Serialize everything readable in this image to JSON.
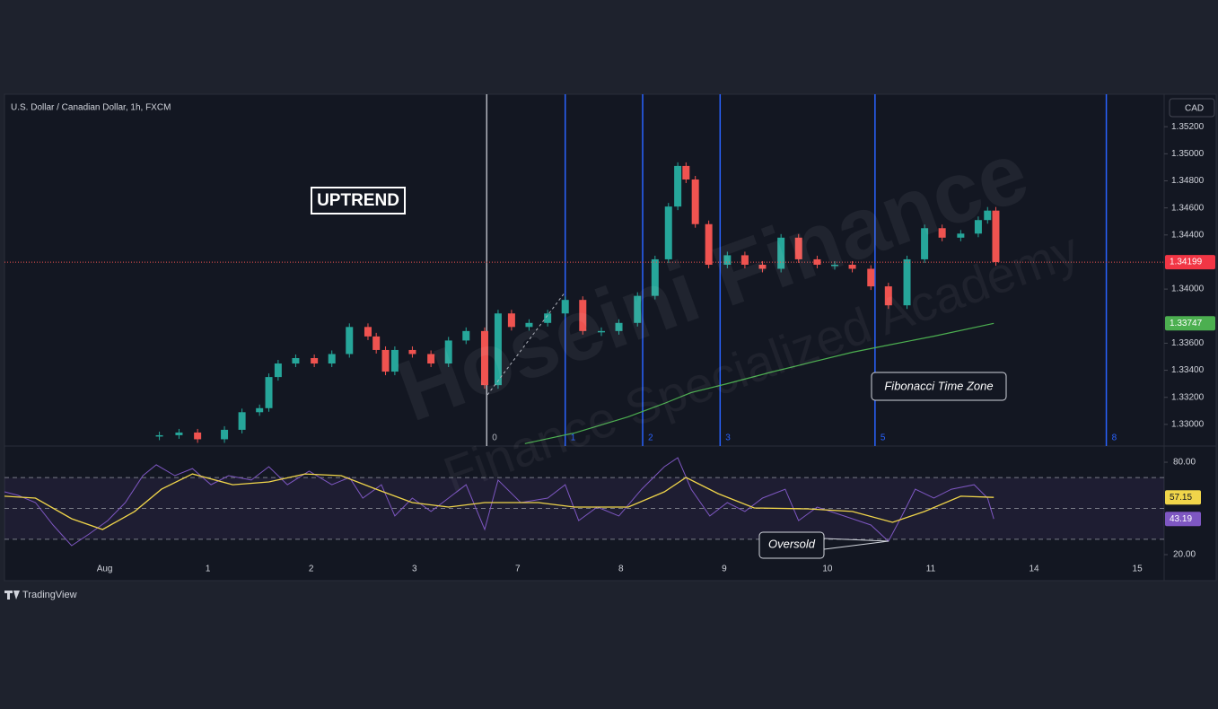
{
  "chart_data": [
    {
      "type": "candlestick",
      "title": "U.S. Dollar / Canadian Dollar, 1h, FXCM",
      "currency": "CAD",
      "watermark": "Hoseini Finance",
      "watermark_subtitle": "Finance Specialized Academy",
      "annotations": [
        "UPTREND",
        "Fibonacci Time Zone",
        "Oversold"
      ],
      "xlim": [
        -0.97,
        10.26
      ],
      "xticks": [
        {
          "value": 0,
          "label": "Aug"
        },
        1,
        2,
        3,
        {
          "value": 4,
          "label": "7"
        },
        {
          "value": 5,
          "label": "8"
        },
        {
          "value": 6,
          "label": "9"
        },
        {
          "value": 7,
          "label": "10"
        },
        {
          "value": 8,
          "label": "11"
        },
        {
          "value": 9,
          "label": "14"
        },
        {
          "value": 10,
          "label": "15"
        }
      ],
      "ylim": [
        1.3284,
        1.3544
      ],
      "yticks": [
        {
          "value": 1.352,
          "label": "1.35200"
        },
        {
          "value": 1.35,
          "label": "1.35000"
        },
        {
          "value": 1.348,
          "label": "1.34800"
        },
        {
          "value": 1.346,
          "label": "1.34600"
        },
        {
          "value": 1.344,
          "label": "1.34400"
        },
        {
          "value": 1.34,
          "label": "1.34000"
        },
        {
          "value": 1.336,
          "label": "1.33600"
        },
        {
          "value": 1.334,
          "label": "1.33400"
        },
        {
          "value": 1.332,
          "label": "1.33200"
        },
        {
          "value": 1.33,
          "label": "1.33000"
        }
      ],
      "up_color": "#26a69a",
      "down_color": "#ef5350",
      "x": [
        0.53,
        0.72,
        0.9,
        1.16,
        1.33,
        1.5,
        1.59,
        1.68,
        1.85,
        2.03,
        2.2,
        2.37,
        2.55,
        2.63,
        2.72,
        2.81,
        2.98,
        3.16,
        3.33,
        3.5,
        3.68,
        3.81,
        3.94,
        4.11,
        4.29,
        4.46,
        4.63,
        4.81,
        4.98,
        5.16,
        5.33,
        5.46,
        5.55,
        5.63,
        5.72,
        5.85,
        6.03,
        6.2,
        6.37,
        6.55,
        6.72,
        6.9,
        7.07,
        7.24,
        7.42,
        7.59,
        7.77,
        7.94,
        8.11,
        8.29,
        8.46,
        8.55,
        8.63
      ],
      "values": [
        1.3292,
        1.3294,
        1.3289,
        1.3296,
        1.3309,
        1.3312,
        1.3335,
        1.3345,
        1.3349,
        1.3345,
        1.3352,
        1.3372,
        1.3365,
        1.3355,
        1.3339,
        1.3355,
        1.3352,
        1.3345,
        1.3362,
        1.3369,
        1.3329,
        1.3382,
        1.3372,
        1.3375,
        1.3382,
        1.3392,
        1.3369,
        1.3369,
        1.3375,
        1.3395,
        1.3422,
        1.3461,
        1.3491,
        1.3481,
        1.3448,
        1.3418,
        1.3425,
        1.3418,
        1.3415,
        1.3438,
        1.3422,
        1.3418,
        1.3418,
        1.3415,
        1.3402,
        1.3388,
        1.3422,
        1.3445,
        1.3438,
        1.3441,
        1.3451,
        1.3458,
        1.34199
      ],
      "ma": {
        "color": "#4caf50",
        "x": [
          4.07,
          4.55,
          5.07,
          5.42,
          5.68,
          6.03,
          6.46,
          6.81,
          7.24,
          7.59,
          8.03,
          8.61
        ],
        "values": [
          1.32858,
          1.32937,
          1.33056,
          1.33155,
          1.33235,
          1.33301,
          1.33387,
          1.33453,
          1.33533,
          1.33586,
          1.33652,
          1.33747
        ]
      },
      "fib_zones": {
        "color": "#2962ff",
        "x": [
          3.7,
          4.46,
          5.21,
          5.96,
          7.46,
          9.7
        ],
        "labels": [
          0,
          1,
          2,
          3,
          5,
          8
        ]
      }
    },
    {
      "type": "line",
      "xlim": [
        -0.97,
        10.26
      ],
      "ylim": [
        3.1,
        90.5
      ],
      "yticks": [
        {
          "value": 80,
          "label": "80.00"
        },
        {
          "value": 20,
          "label": "20.00"
        }
      ],
      "levels": [
        70,
        50,
        30
      ],
      "series": [
        {
          "color": "#7e57c2",
          "x": [
            -0.97,
            -0.84,
            -0.67,
            -0.5,
            -0.32,
            -0.15,
            0.03,
            0.2,
            0.37,
            0.5,
            0.68,
            0.85,
            1.03,
            1.2,
            1.42,
            1.59,
            1.77,
            1.98,
            2.2,
            2.37,
            2.5,
            2.68,
            2.81,
            2.98,
            3.16,
            3.33,
            3.5,
            3.68,
            3.81,
            4.03,
            4.29,
            4.46,
            4.59,
            4.77,
            4.98,
            5.2,
            5.42,
            5.55,
            5.68,
            5.86,
            6.03,
            6.2,
            6.37,
            6.59,
            6.72,
            6.9,
            7.16,
            7.42,
            7.59,
            7.72,
            7.85,
            8.03,
            8.2,
            8.42,
            8.55,
            8.61
          ],
          "values": [
            60.8,
            58.5,
            53.8,
            39.2,
            25.8,
            33.4,
            42.1,
            53.8,
            71.3,
            78.3,
            71.3,
            75.9,
            65.4,
            71.3,
            68.4,
            77.1,
            65.4,
            74.2,
            65.4,
            70.1,
            56.7,
            65.4,
            45.1,
            56.7,
            48.0,
            56.7,
            65.4,
            36.3,
            68.4,
            53.8,
            56.7,
            65.4,
            42.1,
            50.9,
            45.1,
            62.5,
            77.1,
            82.9,
            62.5,
            45.1,
            53.8,
            48.0,
            56.7,
            62.5,
            42.1,
            50.9,
            45.1,
            39.2,
            28.7,
            45.1,
            62.5,
            56.7,
            62.5,
            65.4,
            56.7,
            43.19
          ]
        },
        {
          "color": "#f0d54a",
          "x": [
            -0.97,
            -0.67,
            -0.32,
            -0.02,
            0.29,
            0.55,
            0.85,
            1.24,
            1.59,
            1.94,
            2.29,
            2.63,
            2.98,
            3.33,
            3.68,
            4.2,
            4.55,
            5.07,
            5.42,
            5.63,
            5.94,
            6.29,
            6.81,
            7.24,
            7.63,
            7.94,
            8.29,
            8.61
          ],
          "values": [
            57.9,
            56.7,
            43.3,
            36.3,
            48.0,
            62.5,
            72.4,
            65.4,
            67.2,
            72.4,
            71.3,
            62.5,
            53.8,
            50.9,
            53.8,
            53.8,
            50.9,
            50.9,
            60.8,
            70.1,
            59.6,
            50.3,
            49.7,
            48.0,
            41.0,
            48.0,
            57.9,
            57.15
          ]
        }
      ]
    }
  ],
  "footer": {
    "brand": "TradingView"
  }
}
